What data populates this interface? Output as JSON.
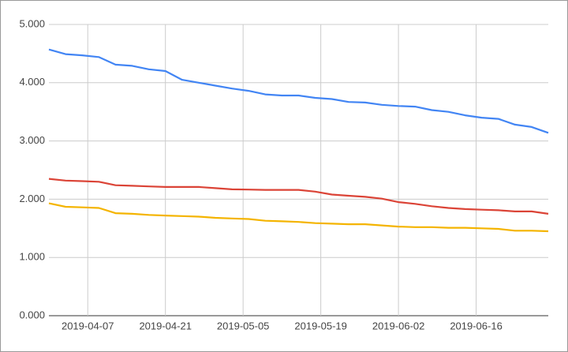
{
  "chart_data": {
    "type": "line",
    "x": [
      "2019-03-31",
      "2019-04-03",
      "2019-04-06",
      "2019-04-09",
      "2019-04-12",
      "2019-04-15",
      "2019-04-18",
      "2019-04-21",
      "2019-04-24",
      "2019-04-27",
      "2019-04-30",
      "2019-05-03",
      "2019-05-06",
      "2019-05-09",
      "2019-05-12",
      "2019-05-15",
      "2019-05-18",
      "2019-05-21",
      "2019-05-24",
      "2019-05-27",
      "2019-05-30",
      "2019-06-02",
      "2019-06-05",
      "2019-06-08",
      "2019-06-11",
      "2019-06-14",
      "2019-06-17",
      "2019-06-20",
      "2019-06-23",
      "2019-06-26",
      "2019-06-29"
    ],
    "series": [
      {
        "color": "#4285f4",
        "values": [
          4570,
          4490,
          4470,
          4440,
          4310,
          4290,
          4230,
          4200,
          4050,
          4000,
          3950,
          3900,
          3860,
          3800,
          3780,
          3780,
          3740,
          3720,
          3670,
          3660,
          3620,
          3600,
          3590,
          3530,
          3500,
          3440,
          3400,
          3380,
          3280,
          3240,
          3140
        ]
      },
      {
        "color": "#db4437",
        "values": [
          2350,
          2320,
          2310,
          2300,
          2240,
          2230,
          2220,
          2210,
          2210,
          2210,
          2190,
          2170,
          2165,
          2160,
          2160,
          2160,
          2130,
          2080,
          2060,
          2040,
          2010,
          1950,
          1920,
          1880,
          1850,
          1830,
          1820,
          1810,
          1790,
          1790,
          1750
        ]
      },
      {
        "color": "#f4b400",
        "values": [
          1930,
          1870,
          1860,
          1850,
          1760,
          1750,
          1730,
          1720,
          1710,
          1700,
          1680,
          1670,
          1660,
          1630,
          1620,
          1610,
          1590,
          1580,
          1570,
          1570,
          1550,
          1530,
          1520,
          1520,
          1510,
          1510,
          1500,
          1490,
          1460,
          1460,
          1450
        ]
      }
    ],
    "xlim": [
      "2019-03-31",
      "2019-06-29"
    ],
    "xticks": [
      "2019-04-07",
      "2019-04-21",
      "2019-05-05",
      "2019-05-19",
      "2019-06-02",
      "2019-06-16"
    ],
    "ylim": [
      0,
      5000
    ],
    "yticks": [
      {
        "value": 0,
        "label": "0.000"
      },
      {
        "value": 1000,
        "label": "1.000"
      },
      {
        "value": 2000,
        "label": "2.000"
      },
      {
        "value": 3000,
        "label": "3.000"
      },
      {
        "value": 4000,
        "label": "4.000"
      },
      {
        "value": 5000,
        "label": "5.000"
      }
    ],
    "grid": true
  }
}
